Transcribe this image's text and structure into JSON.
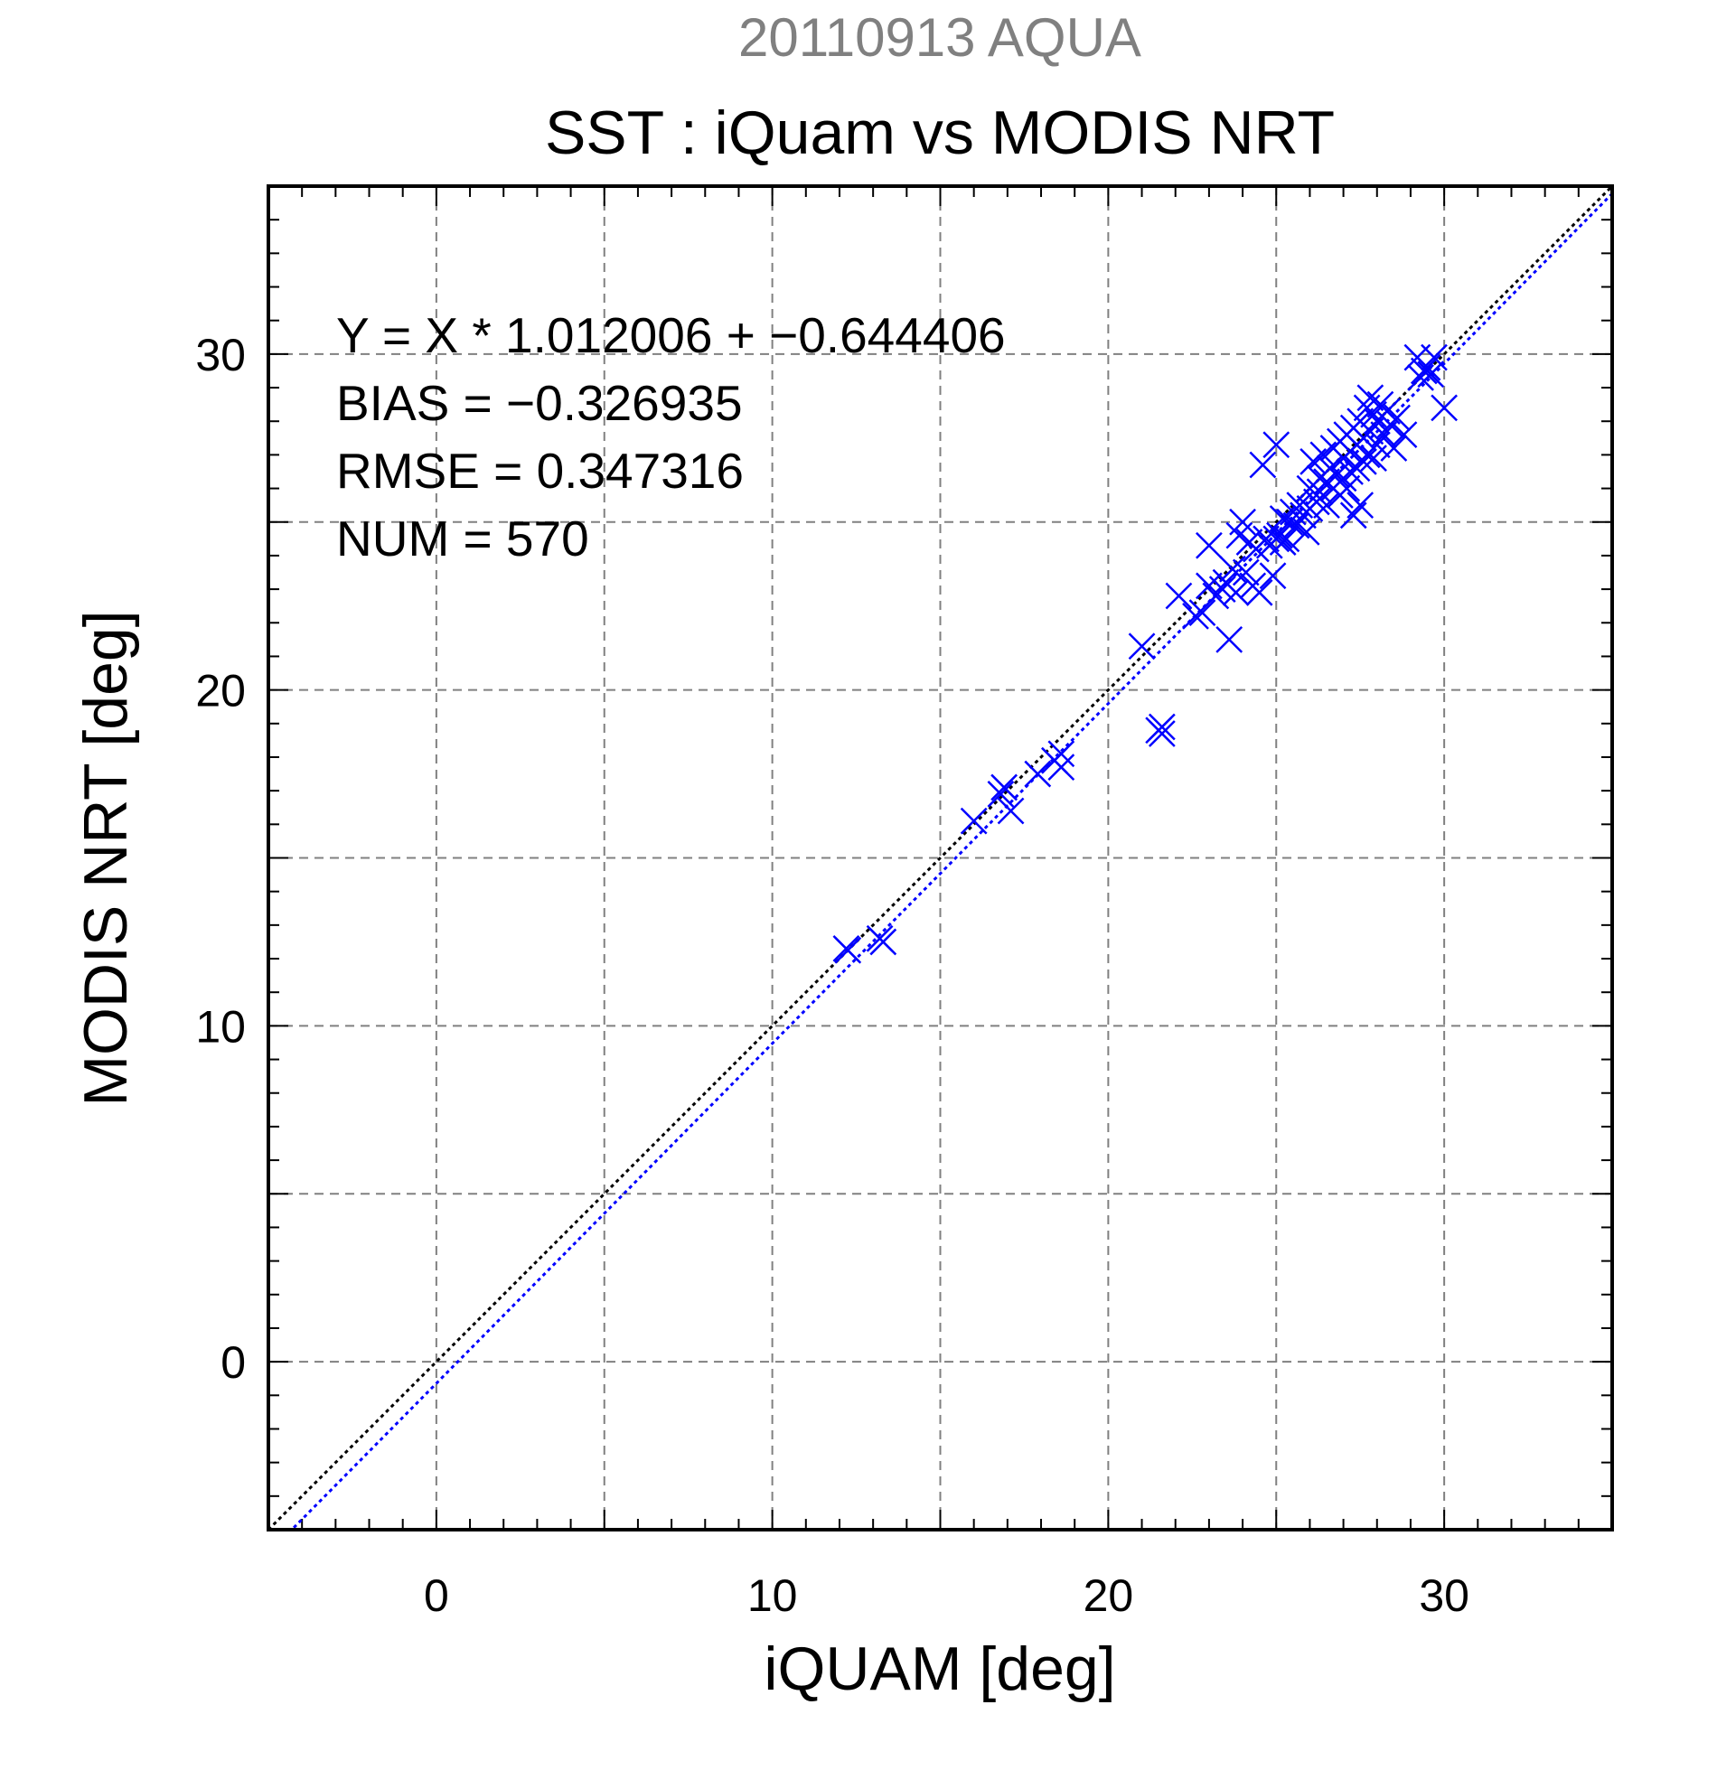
{
  "chart_data": {
    "type": "scatter",
    "supertitle": "20110913 AQUA",
    "title": "SST : iQuam vs MODIS NRT",
    "xlabel": "iQUAM [deg]",
    "ylabel": "MODIS NRT [deg]",
    "xlim": [
      -5,
      35
    ],
    "ylim": [
      -5,
      35
    ],
    "xticks": [
      0,
      10,
      20,
      30
    ],
    "yticks": [
      0,
      10,
      20,
      30
    ],
    "x_tick_labels": [
      "0",
      "10",
      "20",
      "30"
    ],
    "y_tick_labels": [
      "0",
      "10",
      "20",
      "30"
    ],
    "grid": true,
    "stats": {
      "equation": "Y = X * 1.012006 + −0.644406",
      "bias": "BIAS = −0.326935",
      "rmse": "RMSE = 0.347316",
      "num": "NUM = 570"
    },
    "reference_line": {
      "slope": 1,
      "intercept": 0,
      "color": "#000000"
    },
    "fit_line": {
      "slope": 1.012006,
      "intercept": -0.644406,
      "color": "#0000ff"
    },
    "marker_color": "#0000ff",
    "marker": "x-cross",
    "points": [
      [
        12.2,
        12.3
      ],
      [
        12.25,
        12.25
      ],
      [
        13.2,
        12.6
      ],
      [
        13.3,
        12.5
      ],
      [
        16.0,
        16.1
      ],
      [
        16.8,
        16.9
      ],
      [
        16.9,
        17.1
      ],
      [
        17.1,
        16.4
      ],
      [
        17.9,
        17.5
      ],
      [
        18.4,
        17.9
      ],
      [
        18.6,
        18.1
      ],
      [
        18.6,
        17.7
      ],
      [
        21.0,
        21.3
      ],
      [
        21.5,
        18.8
      ],
      [
        21.6,
        18.7
      ],
      [
        21.6,
        18.9
      ],
      [
        22.1,
        22.8
      ],
      [
        22.6,
        22.2
      ],
      [
        22.8,
        22.3
      ],
      [
        23.0,
        23.1
      ],
      [
        23.0,
        24.3
      ],
      [
        23.2,
        22.8
      ],
      [
        23.4,
        23.0
      ],
      [
        23.5,
        23.2
      ],
      [
        23.6,
        21.5
      ],
      [
        23.7,
        23.6
      ],
      [
        23.8,
        22.9
      ],
      [
        23.9,
        24.6
      ],
      [
        24.0,
        25.0
      ],
      [
        24.1,
        23.5
      ],
      [
        24.2,
        24.4
      ],
      [
        24.3,
        23.1
      ],
      [
        24.4,
        24.2
      ],
      [
        24.5,
        22.9
      ],
      [
        24.6,
        26.7
      ],
      [
        24.7,
        24.5
      ],
      [
        24.8,
        24.3
      ],
      [
        24.9,
        23.4
      ],
      [
        25.0,
        24.5
      ],
      [
        25.0,
        27.3
      ],
      [
        25.1,
        24.6
      ],
      [
        25.2,
        25.1
      ],
      [
        25.2,
        24.4
      ],
      [
        25.3,
        24.5
      ],
      [
        25.4,
        25.0
      ],
      [
        25.5,
        25.3
      ],
      [
        25.6,
        24.9
      ],
      [
        25.7,
        25.5
      ],
      [
        25.8,
        25.2
      ],
      [
        25.9,
        24.7
      ],
      [
        26.0,
        26.0
      ],
      [
        26.0,
        25.4
      ],
      [
        26.1,
        26.8
      ],
      [
        26.2,
        25.6
      ],
      [
        26.3,
        26.3
      ],
      [
        26.3,
        25.9
      ],
      [
        26.4,
        27.0
      ],
      [
        26.5,
        26.2
      ],
      [
        26.5,
        25.5
      ],
      [
        26.6,
        26.6
      ],
      [
        26.7,
        26.0
      ],
      [
        26.7,
        27.2
      ],
      [
        26.8,
        26.4
      ],
      [
        26.9,
        25.8
      ],
      [
        26.9,
        27.4
      ],
      [
        27.0,
        26.9
      ],
      [
        27.0,
        26.3
      ],
      [
        27.1,
        27.6
      ],
      [
        27.1,
        26.0
      ],
      [
        27.2,
        27.1
      ],
      [
        27.2,
        26.5
      ],
      [
        27.3,
        27.8
      ],
      [
        27.3,
        25.2
      ],
      [
        27.4,
        27.3
      ],
      [
        27.4,
        26.6
      ],
      [
        27.5,
        28.0
      ],
      [
        27.5,
        25.5
      ],
      [
        27.6,
        27.5
      ],
      [
        27.6,
        26.8
      ],
      [
        27.7,
        28.4
      ],
      [
        27.7,
        27.0
      ],
      [
        27.8,
        28.7
      ],
      [
        27.8,
        27.7
      ],
      [
        27.9,
        28.2
      ],
      [
        27.9,
        26.9
      ],
      [
        28.0,
        28.0
      ],
      [
        28.0,
        27.3
      ],
      [
        28.1,
        28.5
      ],
      [
        28.2,
        27.6
      ],
      [
        28.3,
        28.3
      ],
      [
        28.4,
        27.9
      ],
      [
        28.5,
        27.2
      ],
      [
        28.6,
        28.1
      ],
      [
        28.8,
        27.6
      ],
      [
        29.2,
        29.9
      ],
      [
        29.3,
        29.3
      ],
      [
        29.4,
        29.5
      ],
      [
        29.5,
        29.6
      ],
      [
        29.6,
        29.4
      ],
      [
        29.7,
        29.9
      ],
      [
        30.0,
        28.4
      ]
    ]
  }
}
